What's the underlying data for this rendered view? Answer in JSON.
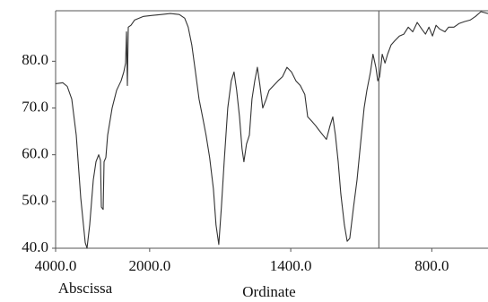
{
  "chart_data": {
    "type": "line",
    "x_label": "Ordinate",
    "corner_label": "Abscissa",
    "xlim": [
      4000,
      561
    ],
    "ylim": [
      40,
      90.8
    ],
    "x_break": 2000,
    "x_break_ratio": 5,
    "xticks": [
      {
        "value": 4000,
        "label": "4000.0"
      },
      {
        "value": 2000,
        "label": "2000.0"
      },
      {
        "value": 1400,
        "label": "1400.0"
      },
      {
        "value": 800,
        "label": "800.0"
      }
    ],
    "yticks": [
      {
        "value": 40,
        "label": "40.0"
      },
      {
        "value": 50,
        "label": "50.0"
      },
      {
        "value": 60,
        "label": "60.0"
      },
      {
        "value": 70,
        "label": "70.0"
      },
      {
        "value": 80,
        "label": "80.0"
      }
    ],
    "vline": 1025,
    "series": [
      {
        "color": "#333333",
        "x": [
          4000,
          3847,
          3752,
          3657,
          3561,
          3466,
          3370,
          3332,
          3275,
          3199,
          3141,
          3084,
          3046,
          3027,
          2989,
          2970,
          2932,
          2893,
          2798,
          2703,
          2607,
          2550,
          2512,
          2493,
          2474,
          2455,
          2397,
          2321,
          2130,
          1989,
          1950,
          1912,
          1874,
          1851,
          1836,
          1821,
          1805,
          1790,
          1775,
          1760,
          1745,
          1729,
          1718,
          1706,
          1695,
          1683,
          1668,
          1653,
          1641,
          1630,
          1618,
          1607,
          1599,
          1588,
          1576,
          1565,
          1553,
          1542,
          1531,
          1519,
          1504,
          1492,
          1473,
          1454,
          1435,
          1416,
          1397,
          1378,
          1359,
          1340,
          1328,
          1309,
          1294,
          1279,
          1263,
          1248,
          1233,
          1221,
          1210,
          1198,
          1187,
          1172,
          1160,
          1149,
          1133,
          1118,
          1103,
          1088,
          1076,
          1061,
          1050,
          1038,
          1030,
          1022,
          1011,
          999,
          988,
          973,
          957,
          938,
          919,
          900,
          881,
          862,
          843,
          827,
          812,
          797,
          782,
          767,
          744,
          729,
          706,
          683,
          660,
          637,
          614,
          591,
          561
        ],
        "values": [
          75.2,
          75.4,
          74.6,
          71.9,
          64.2,
          50.8,
          41.2,
          40.0,
          45.0,
          54.6,
          58.5,
          60.0,
          58.8,
          48.8,
          48.3,
          58.5,
          59.4,
          64.2,
          70.0,
          73.8,
          75.8,
          77.7,
          79.6,
          86.3,
          74.8,
          87.3,
          87.7,
          88.8,
          89.6,
          89.8,
          90.0,
          90.2,
          90.0,
          89.2,
          87.3,
          83.5,
          77.7,
          71.9,
          68.1,
          64.2,
          59.4,
          52.7,
          45.0,
          40.8,
          48.8,
          58.5,
          70.0,
          75.8,
          77.7,
          73.8,
          68.1,
          61.3,
          58.5,
          62.3,
          64.2,
          71.9,
          75.8,
          78.7,
          74.8,
          70.0,
          71.9,
          73.8,
          74.8,
          75.8,
          76.7,
          78.7,
          77.7,
          75.8,
          74.8,
          72.9,
          68.1,
          67.1,
          66.2,
          65.2,
          64.2,
          63.3,
          66.2,
          68.1,
          64.2,
          58.5,
          51.7,
          45.0,
          41.5,
          42.1,
          48.8,
          54.6,
          62.3,
          70.0,
          73.8,
          77.7,
          81.5,
          78.7,
          75.8,
          76.7,
          81.5,
          79.6,
          81.5,
          83.5,
          84.4,
          85.4,
          85.8,
          87.3,
          86.3,
          88.3,
          86.9,
          85.8,
          87.3,
          85.4,
          87.7,
          86.9,
          86.3,
          87.3,
          87.3,
          88.1,
          88.5,
          88.8,
          89.6,
          90.6,
          90.2
        ]
      }
    ]
  }
}
